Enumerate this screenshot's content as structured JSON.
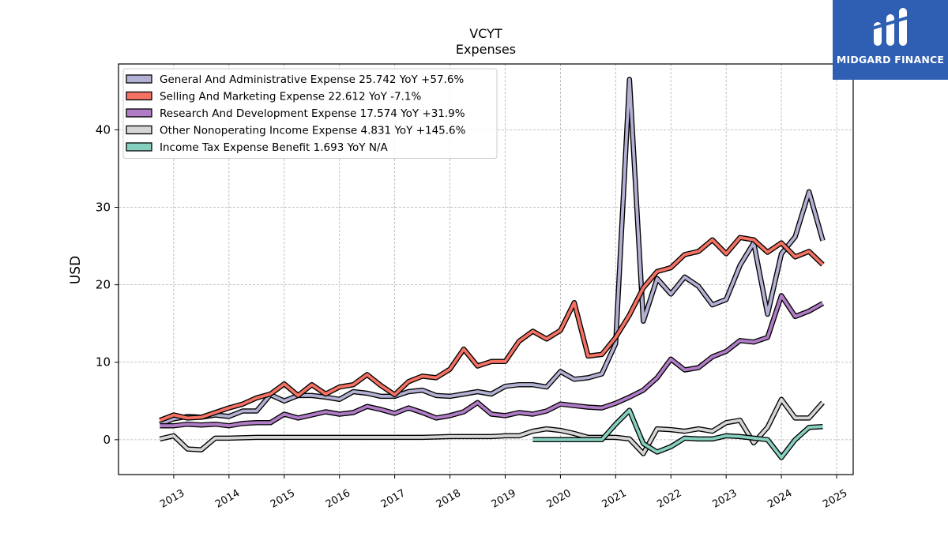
{
  "brand": {
    "name": "MIDGARD FINANCE",
    "bg_color": "#2f5fb3"
  },
  "chart_data": {
    "type": "line",
    "title": "VCYT",
    "subtitle": "Expenses",
    "xlabel": "",
    "ylabel": "USD",
    "xlim": [
      2012.0,
      2025.3
    ],
    "ylim": [
      -4.5,
      48.5
    ],
    "x_ticks": [
      "2013",
      "2014",
      "2015",
      "2016",
      "2017",
      "2018",
      "2019",
      "2020",
      "2021",
      "2022",
      "2023",
      "2024",
      "2025"
    ],
    "y_ticks": [
      0,
      10,
      20,
      30,
      40
    ],
    "grid": true,
    "legend_position": "top-left",
    "series": [
      {
        "name": "General And Administrative Expense  25.742 YoY +57.6%",
        "color": "#b3b1d3",
        "x": [
          2012.75,
          2013.0,
          2013.25,
          2013.5,
          2013.75,
          2014.0,
          2014.25,
          2014.5,
          2014.75,
          2015.0,
          2015.25,
          2015.5,
          2015.75,
          2016.0,
          2016.25,
          2016.5,
          2016.75,
          2017.0,
          2017.25,
          2017.5,
          2017.75,
          2018.0,
          2018.25,
          2018.5,
          2018.75,
          2019.0,
          2019.25,
          2019.5,
          2019.75,
          2020.0,
          2020.25,
          2020.5,
          2020.75,
          2021.0,
          2021.25,
          2021.5,
          2021.75,
          2022.0,
          2022.25,
          2022.5,
          2022.75,
          2023.0,
          2023.25,
          2023.5,
          2023.75,
          2024.0,
          2024.25,
          2024.5,
          2024.75
        ],
        "y": [
          2.0,
          2.7,
          3.0,
          2.9,
          3.2,
          3.0,
          3.7,
          3.7,
          5.8,
          5.0,
          5.7,
          5.7,
          5.5,
          5.2,
          6.2,
          6.0,
          5.6,
          5.6,
          6.2,
          6.4,
          5.7,
          5.6,
          5.9,
          6.2,
          5.9,
          6.9,
          7.1,
          7.1,
          6.8,
          8.8,
          7.8,
          8.0,
          8.5,
          12.4,
          46.5,
          15.3,
          20.8,
          18.8,
          21.0,
          19.8,
          17.4,
          18.1,
          22.5,
          25.4,
          16.2,
          24.0,
          26.2,
          32.0,
          25.7
        ]
      },
      {
        "name": "Selling And Marketing Expense  22.612 YoY -7.1%",
        "color": "#f47264",
        "x": [
          2012.75,
          2013.0,
          2013.25,
          2013.5,
          2013.75,
          2014.0,
          2014.25,
          2014.5,
          2014.75,
          2015.0,
          2015.25,
          2015.5,
          2015.75,
          2016.0,
          2016.25,
          2016.5,
          2016.75,
          2017.0,
          2017.25,
          2017.5,
          2017.75,
          2018.0,
          2018.25,
          2018.5,
          2018.75,
          2019.0,
          2019.25,
          2019.5,
          2019.75,
          2020.0,
          2020.25,
          2020.5,
          2020.75,
          2021.0,
          2021.25,
          2021.5,
          2021.75,
          2022.0,
          2022.25,
          2022.5,
          2022.75,
          2023.0,
          2023.25,
          2023.5,
          2023.75,
          2024.0,
          2024.25,
          2024.5,
          2024.75
        ],
        "y": [
          2.5,
          3.2,
          2.8,
          2.9,
          3.5,
          4.1,
          4.6,
          5.4,
          5.9,
          7.2,
          5.7,
          7.1,
          5.9,
          6.8,
          7.1,
          8.4,
          7.0,
          5.8,
          7.5,
          8.2,
          8.0,
          9.1,
          11.7,
          9.5,
          10.1,
          10.1,
          12.7,
          14.0,
          13.0,
          14.1,
          17.7,
          10.8,
          11.0,
          13.2,
          16.1,
          19.6,
          21.7,
          22.2,
          23.9,
          24.3,
          25.8,
          24.0,
          26.1,
          25.8,
          24.2,
          25.4,
          23.6,
          24.3,
          22.6
        ]
      },
      {
        "name": "Research And Development Expense  17.574 YoY +31.9%",
        "color": "#b07cc6",
        "x": [
          2012.75,
          2013.0,
          2013.25,
          2013.5,
          2013.75,
          2014.0,
          2014.25,
          2014.5,
          2014.75,
          2015.0,
          2015.25,
          2015.5,
          2015.75,
          2016.0,
          2016.25,
          2016.5,
          2016.75,
          2017.0,
          2017.25,
          2017.5,
          2017.75,
          2018.0,
          2018.25,
          2018.5,
          2018.75,
          2019.0,
          2019.25,
          2019.5,
          2019.75,
          2020.0,
          2020.25,
          2020.5,
          2020.75,
          2021.0,
          2021.25,
          2021.5,
          2021.75,
          2022.0,
          2022.25,
          2022.5,
          2022.75,
          2023.0,
          2023.25,
          2023.5,
          2023.75,
          2024.0,
          2024.25,
          2024.5,
          2024.75
        ],
        "y": [
          1.8,
          1.8,
          2.0,
          1.9,
          2.0,
          1.8,
          2.1,
          2.2,
          2.2,
          3.3,
          2.8,
          3.2,
          3.6,
          3.3,
          3.5,
          4.3,
          3.9,
          3.4,
          4.1,
          3.5,
          2.8,
          3.1,
          3.6,
          4.8,
          3.3,
          3.1,
          3.5,
          3.3,
          3.7,
          4.6,
          4.4,
          4.2,
          4.1,
          4.7,
          5.5,
          6.4,
          8.0,
          10.4,
          9.0,
          9.3,
          10.7,
          11.4,
          12.8,
          12.6,
          13.2,
          18.6,
          15.9,
          16.6,
          17.6
        ]
      },
      {
        "name": "Other Nonoperating Income Expense  4.831 YoY +145.6%",
        "color": "#d5d5d5",
        "x": [
          2012.75,
          2013.0,
          2013.25,
          2013.5,
          2013.75,
          2014.0,
          2014.5,
          2015.0,
          2015.5,
          2016.0,
          2016.5,
          2017.0,
          2017.5,
          2018.0,
          2018.25,
          2018.5,
          2018.75,
          2019.0,
          2019.25,
          2019.5,
          2019.75,
          2020.0,
          2020.25,
          2020.5,
          2020.75,
          2021.0,
          2021.25,
          2021.5,
          2021.75,
          2022.0,
          2022.25,
          2022.5,
          2022.75,
          2023.0,
          2023.25,
          2023.5,
          2023.75,
          2024.0,
          2024.25,
          2024.5,
          2024.75
        ],
        "y": [
          0.1,
          0.5,
          -1.2,
          -1.3,
          0.2,
          0.2,
          0.3,
          0.3,
          0.3,
          0.3,
          0.3,
          0.3,
          0.3,
          0.4,
          0.4,
          0.4,
          0.4,
          0.5,
          0.5,
          1.1,
          1.4,
          1.2,
          0.8,
          0.3,
          0.3,
          0.3,
          0.1,
          -1.8,
          1.4,
          1.3,
          1.1,
          1.4,
          1.1,
          2.2,
          2.5,
          -0.4,
          1.6,
          5.2,
          2.8,
          2.8,
          4.8
        ]
      },
      {
        "name": "Income Tax Expense Benefit  1.693 YoY N/A",
        "color": "#86d0c0",
        "x": [
          2019.5,
          2019.75,
          2020.0,
          2020.25,
          2020.5,
          2020.75,
          2021.0,
          2021.25,
          2021.5,
          2021.75,
          2022.0,
          2022.25,
          2022.5,
          2022.75,
          2023.0,
          2023.25,
          2023.5,
          2023.75,
          2024.0,
          2024.25,
          2024.5,
          2024.75
        ],
        "y": [
          0.0,
          0.0,
          0.0,
          0.0,
          0.0,
          0.0,
          2.0,
          3.8,
          -0.5,
          -1.6,
          -0.9,
          0.2,
          0.1,
          0.1,
          0.5,
          0.4,
          0.2,
          0.0,
          -2.3,
          0.0,
          1.6,
          1.7
        ]
      }
    ]
  }
}
